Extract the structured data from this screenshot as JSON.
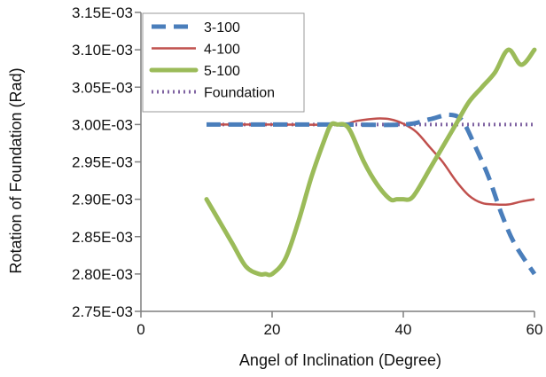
{
  "chart_data": {
    "type": "line",
    "xlabel": "Angel of Inclination (Degree)",
    "ylabel": "Rotation of Foundation (Rad)",
    "xlim": [
      0,
      60
    ],
    "ylim": [
      0.00275,
      0.00315
    ],
    "x_ticks": [
      0,
      20,
      40,
      60
    ],
    "x_tick_labels": [
      "0",
      "20",
      "40",
      "60"
    ],
    "y_ticks": [
      0.00275,
      0.0028,
      0.00285,
      0.0029,
      0.00295,
      0.003,
      0.00305,
      0.0031,
      0.00315
    ],
    "y_tick_labels": [
      "2.75E-03",
      "2.80E-03",
      "2.85E-03",
      "2.90E-03",
      "2.95E-03",
      "3.00E-03",
      "3.05E-03",
      "3.10E-03",
      "3.15E-03"
    ],
    "grid": false,
    "legend_position": "top-left",
    "series": [
      {
        "name": "3-100",
        "color": "#4a7ebb",
        "style": "dashed",
        "x": [
          10,
          20,
          30,
          40,
          44,
          47,
          49,
          51,
          53,
          55,
          57,
          60
        ],
        "y": [
          0.003,
          0.003,
          0.003,
          0.003,
          0.003007,
          0.003013,
          0.003005,
          0.00297,
          0.00293,
          0.00288,
          0.00284,
          0.0028
        ]
      },
      {
        "name": "4-100",
        "color": "#c0504d",
        "style": "solid",
        "x": [
          10,
          20,
          30,
          33,
          36,
          38,
          40,
          42,
          44,
          46,
          48,
          50,
          52,
          54,
          56,
          58,
          60
        ],
        "y": [
          0.003,
          0.003,
          0.003,
          0.003005,
          0.003008,
          0.003007,
          0.003001,
          0.00299,
          0.00297,
          0.00295,
          0.002925,
          0.002905,
          0.002895,
          0.002893,
          0.002893,
          0.002897,
          0.0029
        ]
      },
      {
        "name": "5-100",
        "color": "#9bbb59",
        "style": "solid-thick",
        "x": [
          10,
          12,
          14,
          16,
          18,
          19,
          20,
          22,
          24,
          26,
          28,
          29,
          30,
          31,
          32,
          34,
          36,
          38,
          39,
          40,
          41,
          42,
          44,
          46,
          48,
          50,
          52,
          54,
          56,
          58,
          60
        ],
        "y": [
          0.0029,
          0.00287,
          0.00284,
          0.00281,
          0.0028,
          0.0028,
          0.0028,
          0.00282,
          0.00287,
          0.00293,
          0.00298,
          0.003,
          0.003,
          0.003,
          0.00299,
          0.00295,
          0.00292,
          0.0029,
          0.0029,
          0.0029,
          0.0029,
          0.00291,
          0.00294,
          0.00297,
          0.003,
          0.00303,
          0.00305,
          0.00307,
          0.0031,
          0.00308,
          0.0031
        ]
      },
      {
        "name": "Foundation",
        "color": "#8064a2",
        "style": "dotted",
        "x": [
          10,
          60
        ],
        "y": [
          0.003,
          0.003
        ]
      }
    ]
  }
}
